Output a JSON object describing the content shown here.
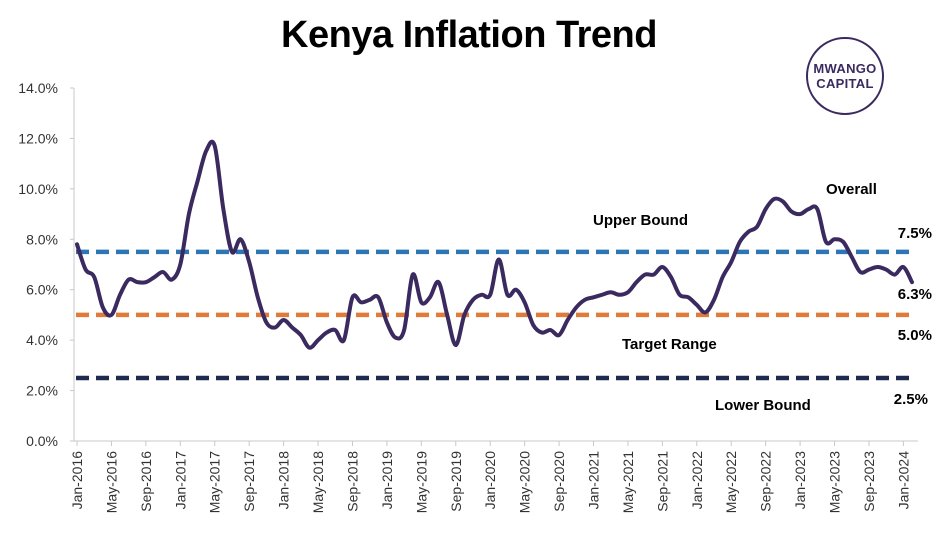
{
  "chart_data": {
    "type": "line",
    "title": "Kenya Inflation Trend",
    "logo": {
      "line1": "MWANGO",
      "line2": "CAPITAL",
      "color": "#3b2a5f"
    },
    "ylim": [
      0,
      14
    ],
    "y_ticks": [
      "0.0%",
      "2.0%",
      "4.0%",
      "6.0%",
      "8.0%",
      "10.0%",
      "12.0%",
      "14.0%"
    ],
    "x_ticks": [
      "Jan-2016",
      "May-2016",
      "Sep-2016",
      "Jan-2017",
      "May-2017",
      "Sep-2017",
      "Jan-2018",
      "May-2018",
      "Sep-2018",
      "Jan-2019",
      "May-2019",
      "Sep-2019",
      "Jan-2020",
      "May-2020",
      "Sep-2020",
      "Jan-2021",
      "May-2021",
      "Sep-2021",
      "Jan-2022",
      "May-2022",
      "Sep-2022",
      "Jan-2023",
      "May-2023",
      "Sep-2023",
      "Jan-2024"
    ],
    "series": [
      {
        "name": "Overall",
        "color": "#3b2a5f",
        "x": [
          "2016-01",
          "2016-02",
          "2016-03",
          "2016-04",
          "2016-05",
          "2016-06",
          "2016-07",
          "2016-08",
          "2016-09",
          "2016-10",
          "2016-11",
          "2016-12",
          "2017-01",
          "2017-02",
          "2017-03",
          "2017-04",
          "2017-05",
          "2017-06",
          "2017-07",
          "2017-08",
          "2017-09",
          "2017-10",
          "2017-11",
          "2017-12",
          "2018-01",
          "2018-02",
          "2018-03",
          "2018-04",
          "2018-05",
          "2018-06",
          "2018-07",
          "2018-08",
          "2018-09",
          "2018-10",
          "2018-11",
          "2018-12",
          "2019-01",
          "2019-02",
          "2019-03",
          "2019-04",
          "2019-05",
          "2019-06",
          "2019-07",
          "2019-08",
          "2019-09",
          "2019-10",
          "2019-11",
          "2019-12",
          "2020-01",
          "2020-02",
          "2020-03",
          "2020-04",
          "2020-05",
          "2020-06",
          "2020-07",
          "2020-08",
          "2020-09",
          "2020-10",
          "2020-11",
          "2020-12",
          "2021-01",
          "2021-02",
          "2021-03",
          "2021-04",
          "2021-05",
          "2021-06",
          "2021-07",
          "2021-08",
          "2021-09",
          "2021-10",
          "2021-11",
          "2021-12",
          "2022-01",
          "2022-02",
          "2022-03",
          "2022-04",
          "2022-05",
          "2022-06",
          "2022-07",
          "2022-08",
          "2022-09",
          "2022-10",
          "2022-11",
          "2022-12",
          "2023-01",
          "2023-02",
          "2023-03",
          "2023-04",
          "2023-05",
          "2023-06",
          "2023-07",
          "2023-08",
          "2023-09",
          "2023-10",
          "2023-11",
          "2023-12",
          "2024-01",
          "2024-02"
        ],
        "values": [
          7.8,
          6.8,
          6.5,
          5.3,
          5.0,
          5.8,
          6.4,
          6.3,
          6.3,
          6.5,
          6.7,
          6.4,
          7.0,
          9.0,
          10.3,
          11.5,
          11.7,
          9.2,
          7.5,
          8.0,
          7.1,
          5.7,
          4.7,
          4.5,
          4.8,
          4.5,
          4.2,
          3.7,
          4.0,
          4.3,
          4.4,
          4.0,
          5.7,
          5.5,
          5.6,
          5.7,
          4.7,
          4.1,
          4.4,
          6.6,
          5.5,
          5.7,
          6.3,
          5.0,
          3.8,
          5.0,
          5.6,
          5.8,
          5.8,
          7.2,
          5.8,
          6.0,
          5.5,
          4.6,
          4.3,
          4.4,
          4.2,
          4.8,
          5.3,
          5.6,
          5.7,
          5.8,
          5.9,
          5.8,
          5.9,
          6.3,
          6.6,
          6.6,
          6.9,
          6.5,
          5.8,
          5.7,
          5.4,
          5.1,
          5.6,
          6.5,
          7.1,
          7.9,
          8.3,
          8.5,
          9.2,
          9.6,
          9.5,
          9.1,
          9.0,
          9.2,
          9.2,
          7.9,
          8.0,
          7.9,
          7.3,
          6.7,
          6.8,
          6.9,
          6.8,
          6.6,
          6.9,
          6.3
        ]
      }
    ],
    "reference_lines": [
      {
        "name": "Upper Bound",
        "value": 7.5,
        "value_label": "7.5%",
        "color": "#2e75b6"
      },
      {
        "name": "Target Range",
        "value": 5.0,
        "value_label": "5.0%",
        "color": "#e07b39"
      },
      {
        "name": "Lower Bound",
        "value": 2.5,
        "value_label": "2.5%",
        "color": "#1f2a4f"
      }
    ],
    "end_label": "6.3%",
    "grid": false,
    "legend": "none"
  }
}
